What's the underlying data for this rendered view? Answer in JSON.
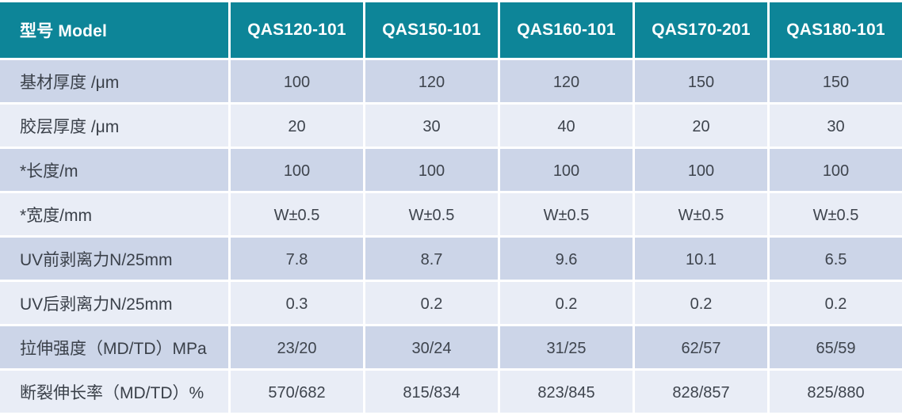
{
  "chart_data": {
    "type": "table",
    "title": "Product specification table",
    "header_label": "型号 Model",
    "columns": [
      "QAS120-101",
      "QAS150-101",
      "QAS160-101",
      "QAS170-201",
      "QAS180-101"
    ],
    "rows": [
      {
        "label": "基材厚度 /μm",
        "values": [
          "100",
          "120",
          "120",
          "150",
          "150"
        ]
      },
      {
        "label": "胶层厚度 /μm",
        "values": [
          "20",
          "30",
          "40",
          "20",
          "30"
        ]
      },
      {
        "label": "*长度/m",
        "values": [
          "100",
          "100",
          "100",
          "100",
          "100"
        ]
      },
      {
        "label": "*宽度/mm",
        "values": [
          "W±0.5",
          "W±0.5",
          "W±0.5",
          "W±0.5",
          "W±0.5"
        ]
      },
      {
        "label": "UV前剥离力N/25mm",
        "values": [
          "7.8",
          "8.7",
          "9.6",
          "10.1",
          "6.5"
        ]
      },
      {
        "label": "UV后剥离力N/25mm",
        "values": [
          "0.3",
          "0.2",
          "0.2",
          "0.2",
          "0.2"
        ]
      },
      {
        "label": "拉伸强度（MD/TD）MPa",
        "values": [
          "23/20",
          "30/24",
          "31/25",
          "62/57",
          "65/59"
        ]
      },
      {
        "label": "断裂伸长率（MD/TD）%",
        "values": [
          "570/682",
          "815/834",
          "823/845",
          "828/857",
          "825/880"
        ]
      }
    ],
    "layout": {
      "grid": "white 3px gridlines",
      "row_striping": "odd rows darker, even rows lighter"
    }
  },
  "colors": {
    "header_bg": "#0d8598",
    "header_text": "#ffffff",
    "row_odd_bg": "#ccd5e8",
    "row_even_bg": "#e9edf6",
    "cell_text": "#3e444d",
    "grid": "#ffffff"
  }
}
